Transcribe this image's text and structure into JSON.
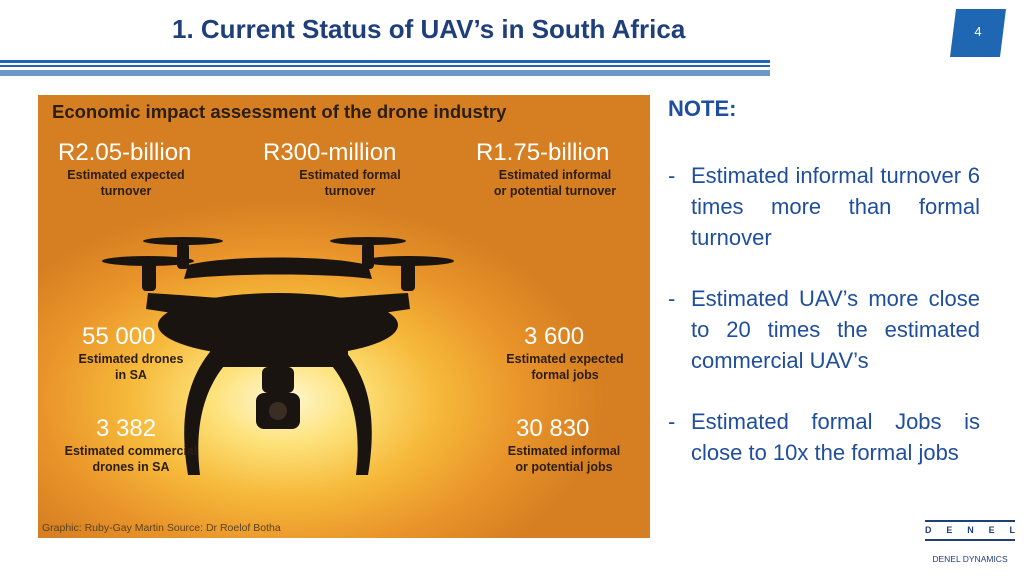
{
  "slide": {
    "title": "1. Current Status of UAV’s in South Africa",
    "page_number": "4"
  },
  "infographic": {
    "heading": "Economic impact assessment of the drone industry",
    "stats": [
      {
        "value": "R2.05-billion",
        "caption_line1": "Estimated expected",
        "caption_line2": "turnover"
      },
      {
        "value": "R300-million",
        "caption_line1": "Estimated formal",
        "caption_line2": "turnover"
      },
      {
        "value": "R1.75-billion",
        "caption_line1": "Estimated informal",
        "caption_line2": "or potential turnover"
      },
      {
        "value": "55 000",
        "caption_line1": "Estimated drones",
        "caption_line2": "in SA"
      },
      {
        "value": "3 600",
        "caption_line1": "Estimated expected",
        "caption_line2": "formal jobs"
      },
      {
        "value": "3 382",
        "caption_line1": "Estimated commercial",
        "caption_line2": "drones in SA"
      },
      {
        "value": "30 830",
        "caption_line1": "Estimated informal",
        "caption_line2": "or potential jobs"
      }
    ],
    "credit": "Graphic: Ruby-Gay Martin Source: Dr Roelof Botha"
  },
  "note": {
    "title": "NOTE:",
    "bullets": [
      "Estimated informal turnover 6 times more than formal turnover",
      "Estimated UAV’s more close to 20 times the estimated commercial UAV’s",
      "Estimated formal Jobs is close to 10x the formal jobs"
    ]
  },
  "logo": {
    "letters": [
      "D",
      "E",
      "N",
      "E",
      "L"
    ],
    "subtitle": "DENEL DYNAMICS"
  },
  "colors": {
    "title": "#1f3f7a",
    "rule": "#1f66b3",
    "note_text": "#1f4e9c",
    "badge": "#1f66b3"
  }
}
